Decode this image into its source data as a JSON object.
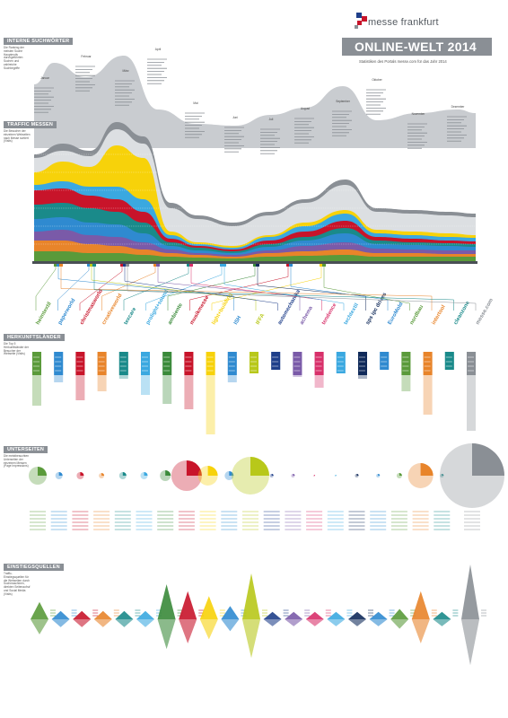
{
  "brand": {
    "name": "messe frankfurt",
    "logo_icon": "messe-frankfurt-logo-icon"
  },
  "header": {
    "title": "ONLINE-WELT 2014",
    "subtitle": "Statistiken des Portals messe.com für das Jahr 2014"
  },
  "sections": {
    "search": {
      "title": "INTERNE SUCHWÖRTER",
      "description": "Die Ranking der meisten Suche Hauptmotiv durchgeführten Suchen und zahlreiche Suchbegriffe"
    },
    "traffic": {
      "title": "TRAFFIC MESSEN",
      "description": "Die Besucher der einzelnen Webseiten nach Messe sortiert (Visits)"
    },
    "origin": {
      "title": "HERKUNFTSLÄNDER",
      "description": "Die Top 5 Herkunftsländer der Besucher der Webseite (Visits)"
    },
    "subpages": {
      "title": "UNTERSEITEN",
      "description": "Die meistbesuchten Unterseiten der einzelnen Messen (Page Impressions)"
    },
    "sources": {
      "title": "EINSTIEGSQUELLEN",
      "description": "Traffic-Einstiegsquellen für die Webseiten durch Suchmaschinen, direkten Seitenaufruf und Social Media (Visits)"
    }
  },
  "months": [
    "Januar",
    "Februar",
    "März",
    "April",
    "Mai",
    "Juni",
    "Juli",
    "August",
    "September",
    "Oktober",
    "November",
    "Dezember"
  ],
  "colors": {
    "gray": "#b8bcc0",
    "dark_gray": "#8a8f95",
    "green": "#5a9a3a",
    "red": "#c8142a",
    "yellow": "#f7d20a",
    "blue": "#2f8ad0",
    "light_blue": "#3aa8e0",
    "teal": "#1a8a8a",
    "purple": "#7a5aa8",
    "dark_blue": "#1f3f8a",
    "orange": "#e8842a",
    "pink": "#d8306a",
    "olive": "#b8c81a",
    "navy": "#102a5a"
  },
  "fairs": [
    {
      "name": "heimtextil",
      "color": "#5a9a3a"
    },
    {
      "name": "paperworld",
      "color": "#2f8ad0"
    },
    {
      "name": "christmasworld",
      "color": "#c8142a"
    },
    {
      "name": "creativeworld",
      "color": "#e8842a"
    },
    {
      "name": "texcare",
      "color": "#1a8a8a"
    },
    {
      "name": "prolight+sound",
      "color": "#3aa8e0"
    },
    {
      "name": "ambiente",
      "color": "#3a8a3a"
    },
    {
      "name": "musikmesse",
      "color": "#c8142a"
    },
    {
      "name": "light+building",
      "color": "#f7d20a"
    },
    {
      "name": "ISH",
      "color": "#2f8ad0"
    },
    {
      "name": "IFFA",
      "color": "#b8c81a"
    },
    {
      "name": "automechanika",
      "color": "#1f3f8a"
    },
    {
      "name": "achema",
      "color": "#7a5aa8"
    },
    {
      "name": "tendence",
      "color": "#d8306a"
    },
    {
      "name": "techtextil",
      "color": "#3aa8e0"
    },
    {
      "name": "sps ipc drives",
      "color": "#102a5a"
    },
    {
      "name": "EuroMold",
      "color": "#2f8ad0"
    },
    {
      "name": "nordbau",
      "color": "#5a9a3a"
    },
    {
      "name": "intertool",
      "color": "#e8842a"
    },
    {
      "name": "cleanzone",
      "color": "#1a8a8a"
    },
    {
      "name": "messe.com",
      "color": "#8a8f95"
    }
  ]
}
